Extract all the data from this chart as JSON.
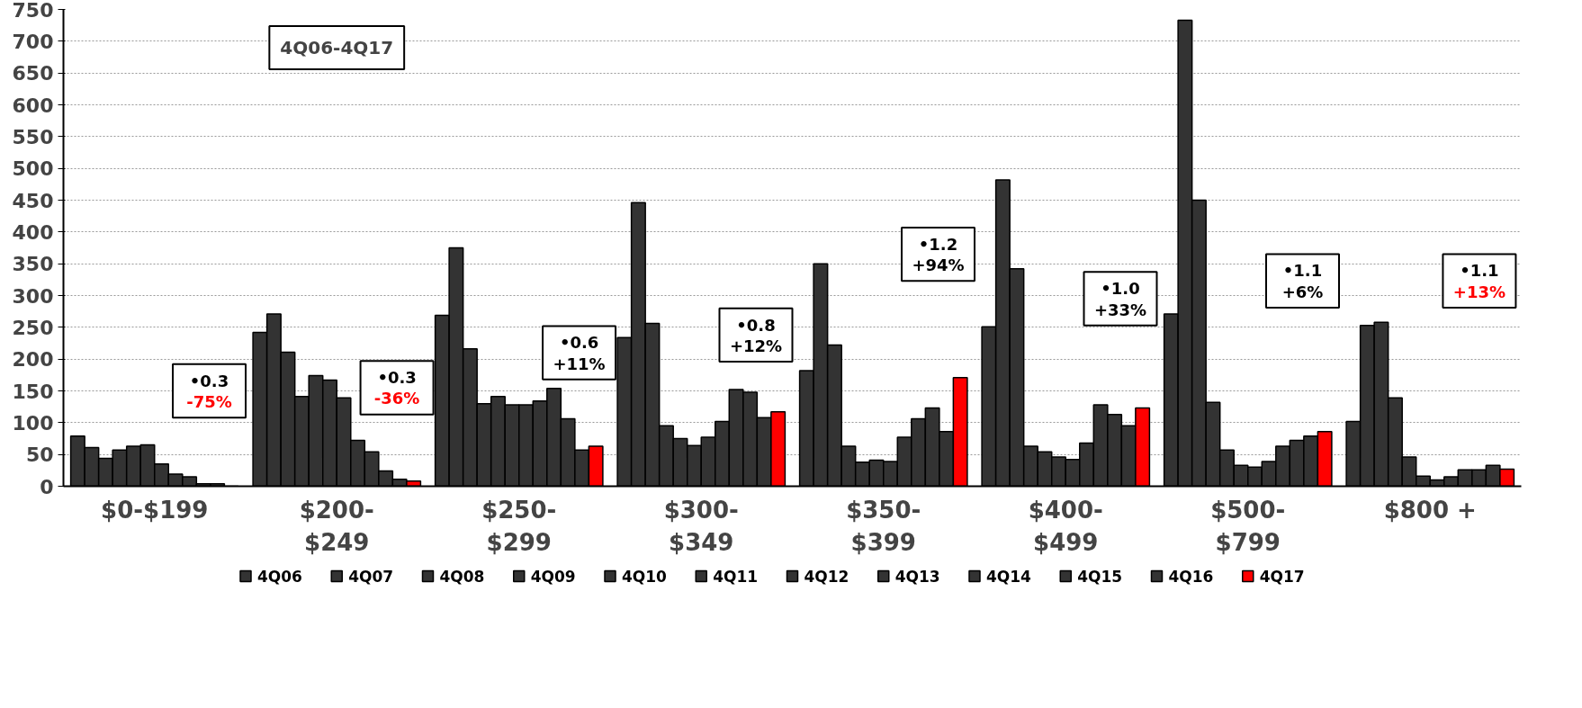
{
  "chart_data": {
    "type": "bar",
    "categories": [
      "$0-$199",
      "$200-\n$249",
      "$250-\n$299",
      "$300-\n$349",
      "$350-\n$399",
      "$400-\n$499",
      "$500-\n$799",
      "$800 +"
    ],
    "series": [
      {
        "name": "4Q06",
        "color": "#333333",
        "values": [
          79,
          242,
          269,
          234,
          182,
          251,
          271,
          102
        ]
      },
      {
        "name": "4Q07",
        "color": "#333333",
        "values": [
          61,
          271,
          375,
          446,
          350,
          482,
          733,
          253
        ]
      },
      {
        "name": "4Q08",
        "color": "#333333",
        "values": [
          44,
          211,
          216,
          256,
          222,
          342,
          450,
          258
        ]
      },
      {
        "name": "4Q09",
        "color": "#333333",
        "values": [
          57,
          141,
          130,
          95,
          63,
          63,
          132,
          139
        ]
      },
      {
        "name": "4Q10",
        "color": "#333333",
        "values": [
          63,
          174,
          141,
          75,
          38,
          54,
          57,
          46
        ]
      },
      {
        "name": "4Q11",
        "color": "#333333",
        "values": [
          65,
          167,
          128,
          64,
          41,
          46,
          33,
          16
        ]
      },
      {
        "name": "4Q12",
        "color": "#333333",
        "values": [
          35,
          139,
          128,
          77,
          39,
          42,
          30,
          10
        ]
      },
      {
        "name": "4Q13",
        "color": "#333333",
        "values": [
          19,
          72,
          134,
          102,
          77,
          68,
          39,
          15
        ]
      },
      {
        "name": "4Q14",
        "color": "#333333",
        "values": [
          15,
          54,
          154,
          152,
          106,
          128,
          63,
          26
        ]
      },
      {
        "name": "4Q15",
        "color": "#333333",
        "values": [
          4,
          24,
          106,
          148,
          123,
          113,
          72,
          26
        ]
      },
      {
        "name": "4Q16",
        "color": "#333333",
        "values": [
          4,
          11,
          57,
          108,
          86,
          95,
          79,
          33
        ]
      },
      {
        "name": "4Q17",
        "color": "#ff0000",
        "values": [
          null,
          8,
          63,
          117,
          171,
          123,
          86,
          27
        ]
      }
    ],
    "ylim": [
      0,
      750
    ],
    "yticks": [
      0,
      50,
      100,
      150,
      200,
      250,
      300,
      350,
      400,
      450,
      500,
      550,
      600,
      650,
      700,
      750
    ],
    "grid": "y",
    "legend": "bottom",
    "annotations": [
      "4Q06-4Q17",
      "•0.3",
      "-75%",
      "•0.3",
      "-36%",
      "•0.6",
      "+11%",
      "•0.8",
      "+12%",
      "•1.2",
      "+94%",
      "•1.0",
      "+33%",
      "•1.1",
      "+6%",
      "•1.1",
      "+13%"
    ]
  }
}
